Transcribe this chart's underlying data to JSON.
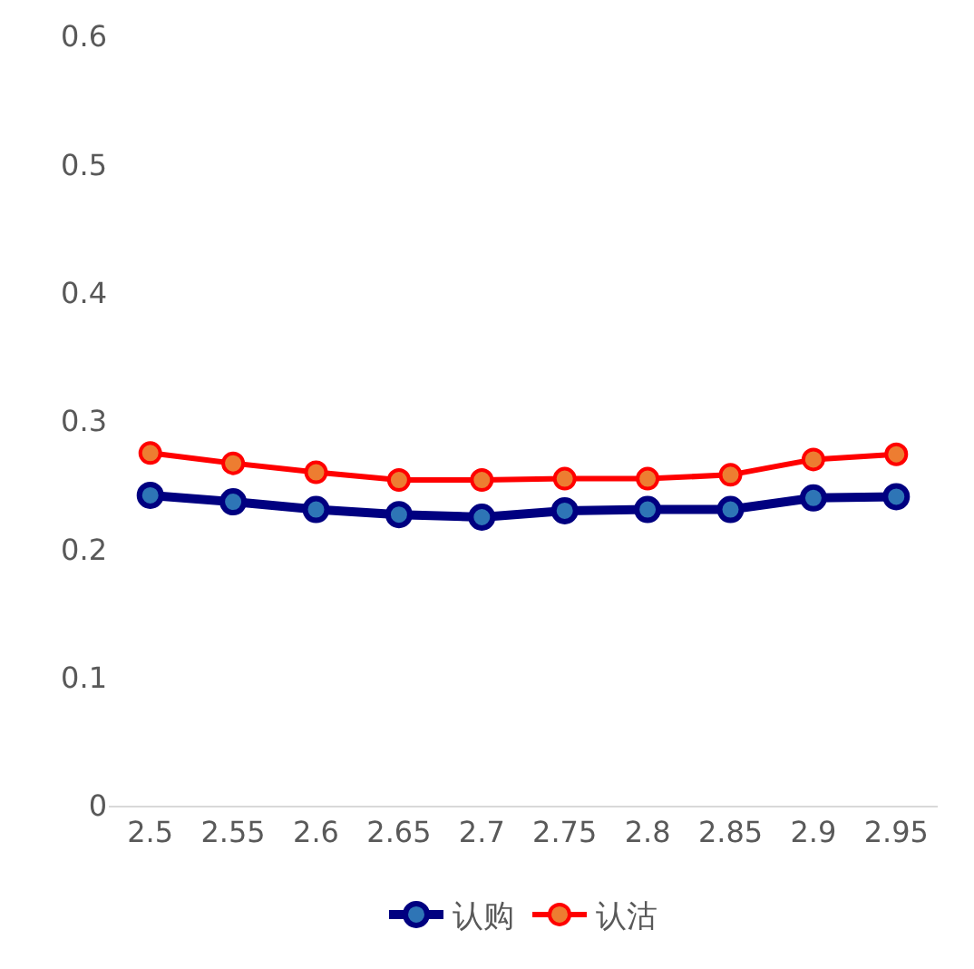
{
  "chart_data": {
    "type": "line",
    "categories": [
      "2.5",
      "2.55",
      "2.6",
      "2.65",
      "2.7",
      "2.75",
      "2.8",
      "2.85",
      "2.9",
      "2.95"
    ],
    "series": [
      {
        "name": "认购",
        "color": "#000080",
        "values": [
          0.242,
          0.237,
          0.231,
          0.227,
          0.225,
          0.23,
          0.231,
          0.231,
          0.24,
          0.241
        ]
      },
      {
        "name": "认沽",
        "color": "#ff0000",
        "values": [
          0.275,
          0.267,
          0.26,
          0.254,
          0.254,
          0.255,
          0.255,
          0.258,
          0.27,
          0.274
        ]
      }
    ],
    "ylim": [
      0,
      0.6
    ],
    "yticks": [
      0,
      0.1,
      0.2,
      0.3,
      0.4,
      0.5,
      0.6
    ],
    "legend": "bottom",
    "marker": "circle",
    "line_style": "solid"
  }
}
